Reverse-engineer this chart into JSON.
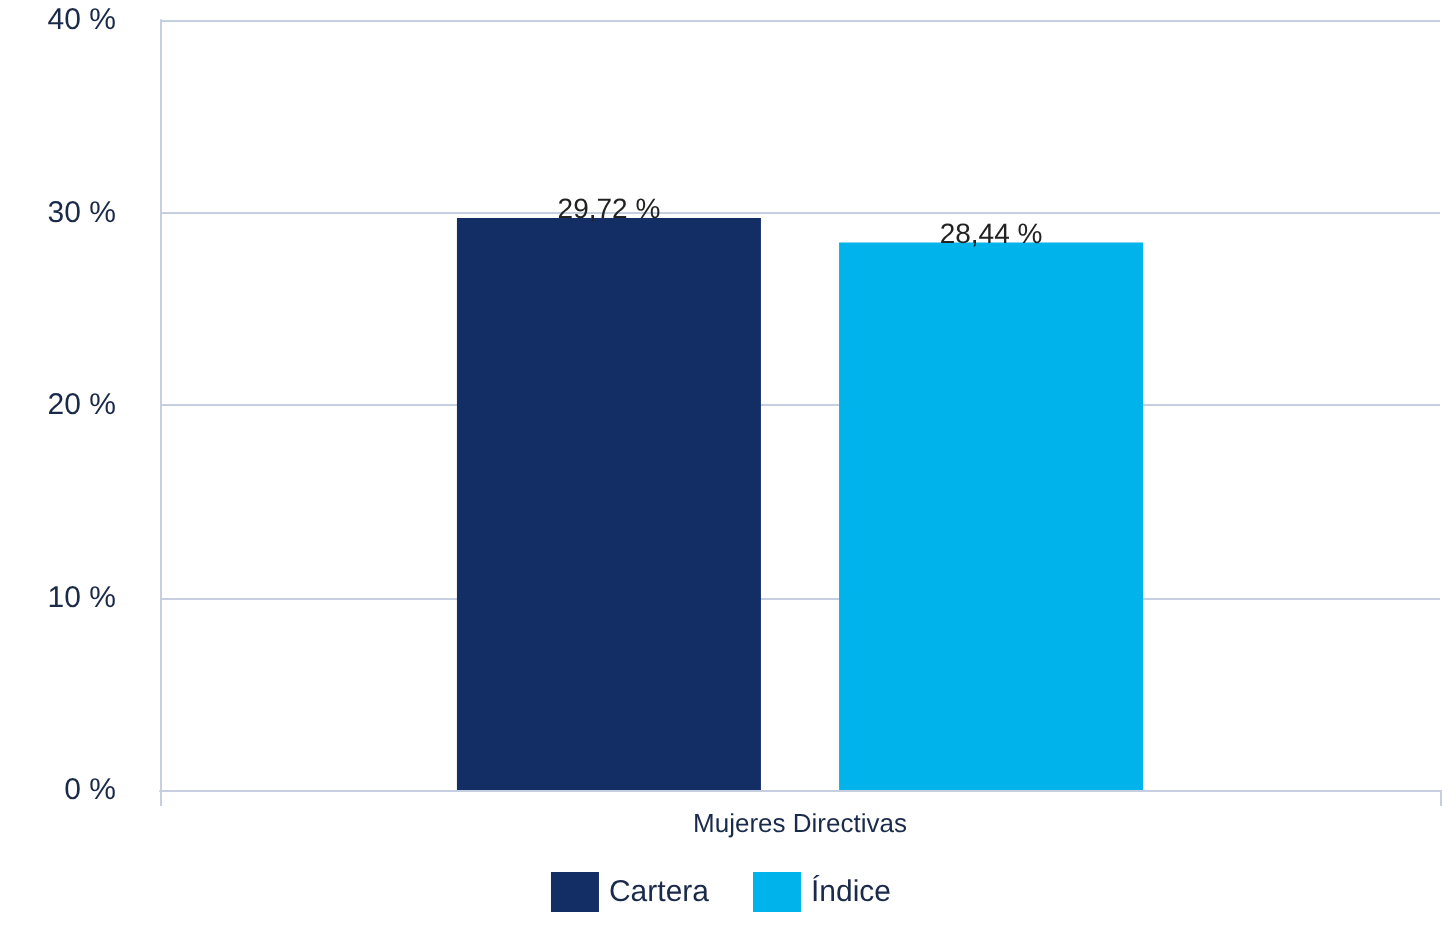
{
  "chart_data": {
    "type": "bar",
    "categories": [
      "Mujeres Directivas"
    ],
    "series": [
      {
        "name": "Cartera",
        "color": "#132d65",
        "values": [
          29.72
        ],
        "value_labels": [
          "29,72 %"
        ]
      },
      {
        "name": "Índice",
        "color": "#00b4eb",
        "values": [
          28.44
        ],
        "value_labels": [
          "28,44 %"
        ]
      }
    ],
    "ylim": [
      0,
      40
    ],
    "yticks": [
      {
        "value": 0,
        "label": "0 %"
      },
      {
        "value": 10,
        "label": "10 %"
      },
      {
        "value": 20,
        "label": "20 %"
      },
      {
        "value": 30,
        "label": "30 %"
      },
      {
        "value": 40,
        "label": "40 %"
      }
    ],
    "grid": "y",
    "legend": "bottom"
  }
}
